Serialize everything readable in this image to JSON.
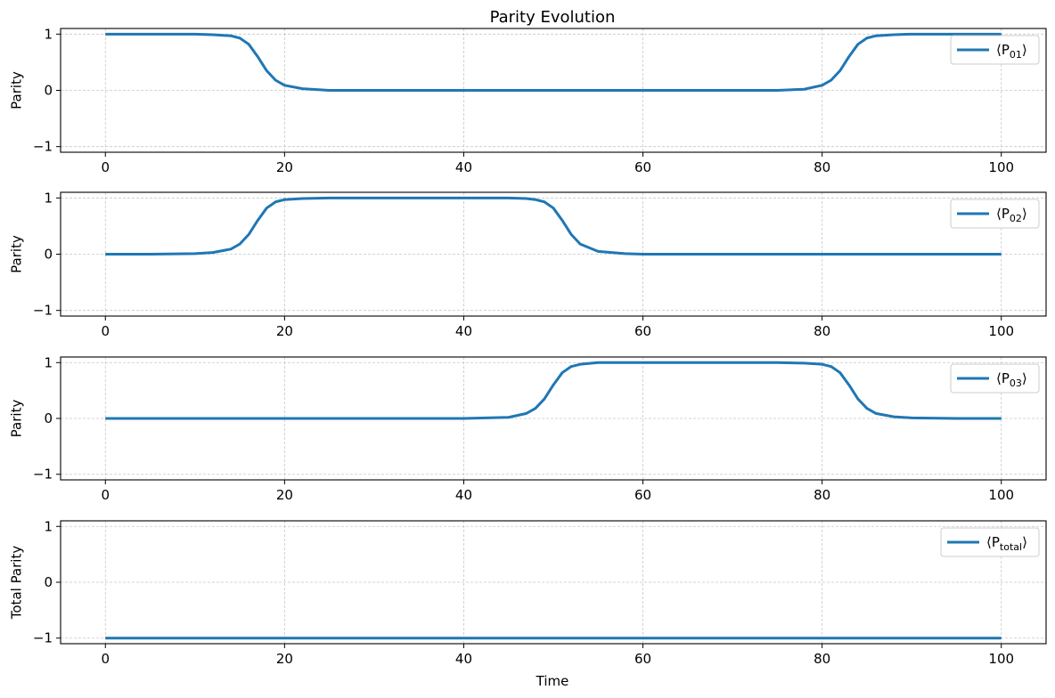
{
  "chart_data": {
    "type": "line",
    "title": "Parity Evolution",
    "xlabel": "Time",
    "line_color": "#1f77b4",
    "grid": true,
    "legend_position": "upper right",
    "x": [
      0,
      5,
      10,
      12,
      14,
      15,
      16,
      17,
      18,
      19,
      20,
      22,
      25,
      30,
      40,
      45,
      47,
      48,
      49,
      50,
      51,
      52,
      53,
      55,
      58,
      60,
      70,
      75,
      78,
      80,
      81,
      82,
      83,
      84,
      85,
      86,
      88,
      90,
      95,
      100
    ],
    "subplots": [
      {
        "ylabel": "Parity",
        "legend_label": "⟨P01⟩",
        "legend_base": "⟨P",
        "legend_sub": "01",
        "legend_close": "⟩",
        "xlim": [
          -5,
          105
        ],
        "ylim": [
          -1.1,
          1.1
        ],
        "xticks": [
          0,
          20,
          40,
          60,
          80,
          100
        ],
        "yticks": [
          1,
          0,
          -1
        ],
        "xtick_labels": [
          "0",
          "20",
          "40",
          "60",
          "80",
          "100"
        ],
        "ytick_labels": [
          "1",
          "0",
          "−1"
        ],
        "values": [
          1.0,
          1.0,
          1.0,
          0.99,
          0.97,
          0.93,
          0.82,
          0.6,
          0.35,
          0.18,
          0.09,
          0.03,
          0.0,
          0.0,
          0.0,
          0.0,
          0.0,
          0.0,
          0.0,
          0.0,
          0.0,
          0.0,
          0.0,
          0.0,
          0.0,
          0.0,
          0.0,
          0.0,
          0.02,
          0.09,
          0.18,
          0.35,
          0.6,
          0.82,
          0.93,
          0.97,
          0.99,
          1.0,
          1.0,
          1.0
        ]
      },
      {
        "ylabel": "Parity",
        "legend_label": "⟨P02⟩",
        "legend_base": "⟨P",
        "legend_sub": "02",
        "legend_close": "⟩",
        "xlim": [
          -5,
          105
        ],
        "ylim": [
          -1.1,
          1.1
        ],
        "xticks": [
          0,
          20,
          40,
          60,
          80,
          100
        ],
        "yticks": [
          1,
          0,
          -1
        ],
        "xtick_labels": [
          "0",
          "20",
          "40",
          "60",
          "80",
          "100"
        ],
        "ytick_labels": [
          "1",
          "0",
          "−1"
        ],
        "values": [
          0.0,
          0.0,
          0.01,
          0.03,
          0.09,
          0.18,
          0.35,
          0.6,
          0.82,
          0.93,
          0.97,
          0.99,
          1.0,
          1.0,
          1.0,
          1.0,
          0.99,
          0.97,
          0.93,
          0.82,
          0.6,
          0.35,
          0.18,
          0.05,
          0.01,
          0.0,
          0.0,
          0.0,
          0.0,
          0.0,
          0.0,
          0.0,
          0.0,
          0.0,
          0.0,
          0.0,
          0.0,
          0.0,
          0.0,
          0.0
        ]
      },
      {
        "ylabel": "Parity",
        "legend_label": "⟨P03⟩",
        "legend_base": "⟨P",
        "legend_sub": "03",
        "legend_close": "⟩",
        "xlim": [
          -5,
          105
        ],
        "ylim": [
          -1.1,
          1.1
        ],
        "xticks": [
          0,
          20,
          40,
          60,
          80,
          100
        ],
        "yticks": [
          1,
          0,
          -1
        ],
        "xtick_labels": [
          "0",
          "20",
          "40",
          "60",
          "80",
          "100"
        ],
        "ytick_labels": [
          "1",
          "0",
          "−1"
        ],
        "values": [
          0.0,
          0.0,
          0.0,
          0.0,
          0.0,
          0.0,
          0.0,
          0.0,
          0.0,
          0.0,
          0.0,
          0.0,
          0.0,
          0.0,
          0.0,
          0.02,
          0.09,
          0.18,
          0.35,
          0.6,
          0.82,
          0.93,
          0.97,
          1.0,
          1.0,
          1.0,
          1.0,
          1.0,
          0.99,
          0.97,
          0.93,
          0.82,
          0.6,
          0.35,
          0.18,
          0.09,
          0.03,
          0.01,
          0.0,
          0.0
        ]
      },
      {
        "ylabel": "Total Parity",
        "legend_label": "⟨Ptotal⟩",
        "legend_base": "⟨P",
        "legend_sub": "total",
        "legend_close": "⟩",
        "xlim": [
          -5,
          105
        ],
        "ylim": [
          -1.1,
          1.1
        ],
        "xticks": [
          0,
          20,
          40,
          60,
          80,
          100
        ],
        "yticks": [
          1,
          0,
          -1
        ],
        "xtick_labels": [
          "0",
          "20",
          "40",
          "60",
          "80",
          "100"
        ],
        "ytick_labels": [
          "1",
          "0",
          "−1"
        ],
        "values": [
          -1.0,
          -1.0,
          -1.0,
          -1.0,
          -1.0,
          -1.0,
          -1.0,
          -1.0,
          -1.0,
          -1.0,
          -1.0,
          -1.0,
          -1.0,
          -1.0,
          -1.0,
          -1.0,
          -1.0,
          -1.0,
          -1.0,
          -1.0,
          -1.0,
          -1.0,
          -1.0,
          -1.0,
          -1.0,
          -1.0,
          -1.0,
          -1.0,
          -1.0,
          -1.0,
          -1.0,
          -1.0,
          -1.0,
          -1.0,
          -1.0,
          -1.0,
          -1.0,
          -1.0,
          -1.0,
          -1.0
        ]
      }
    ]
  }
}
